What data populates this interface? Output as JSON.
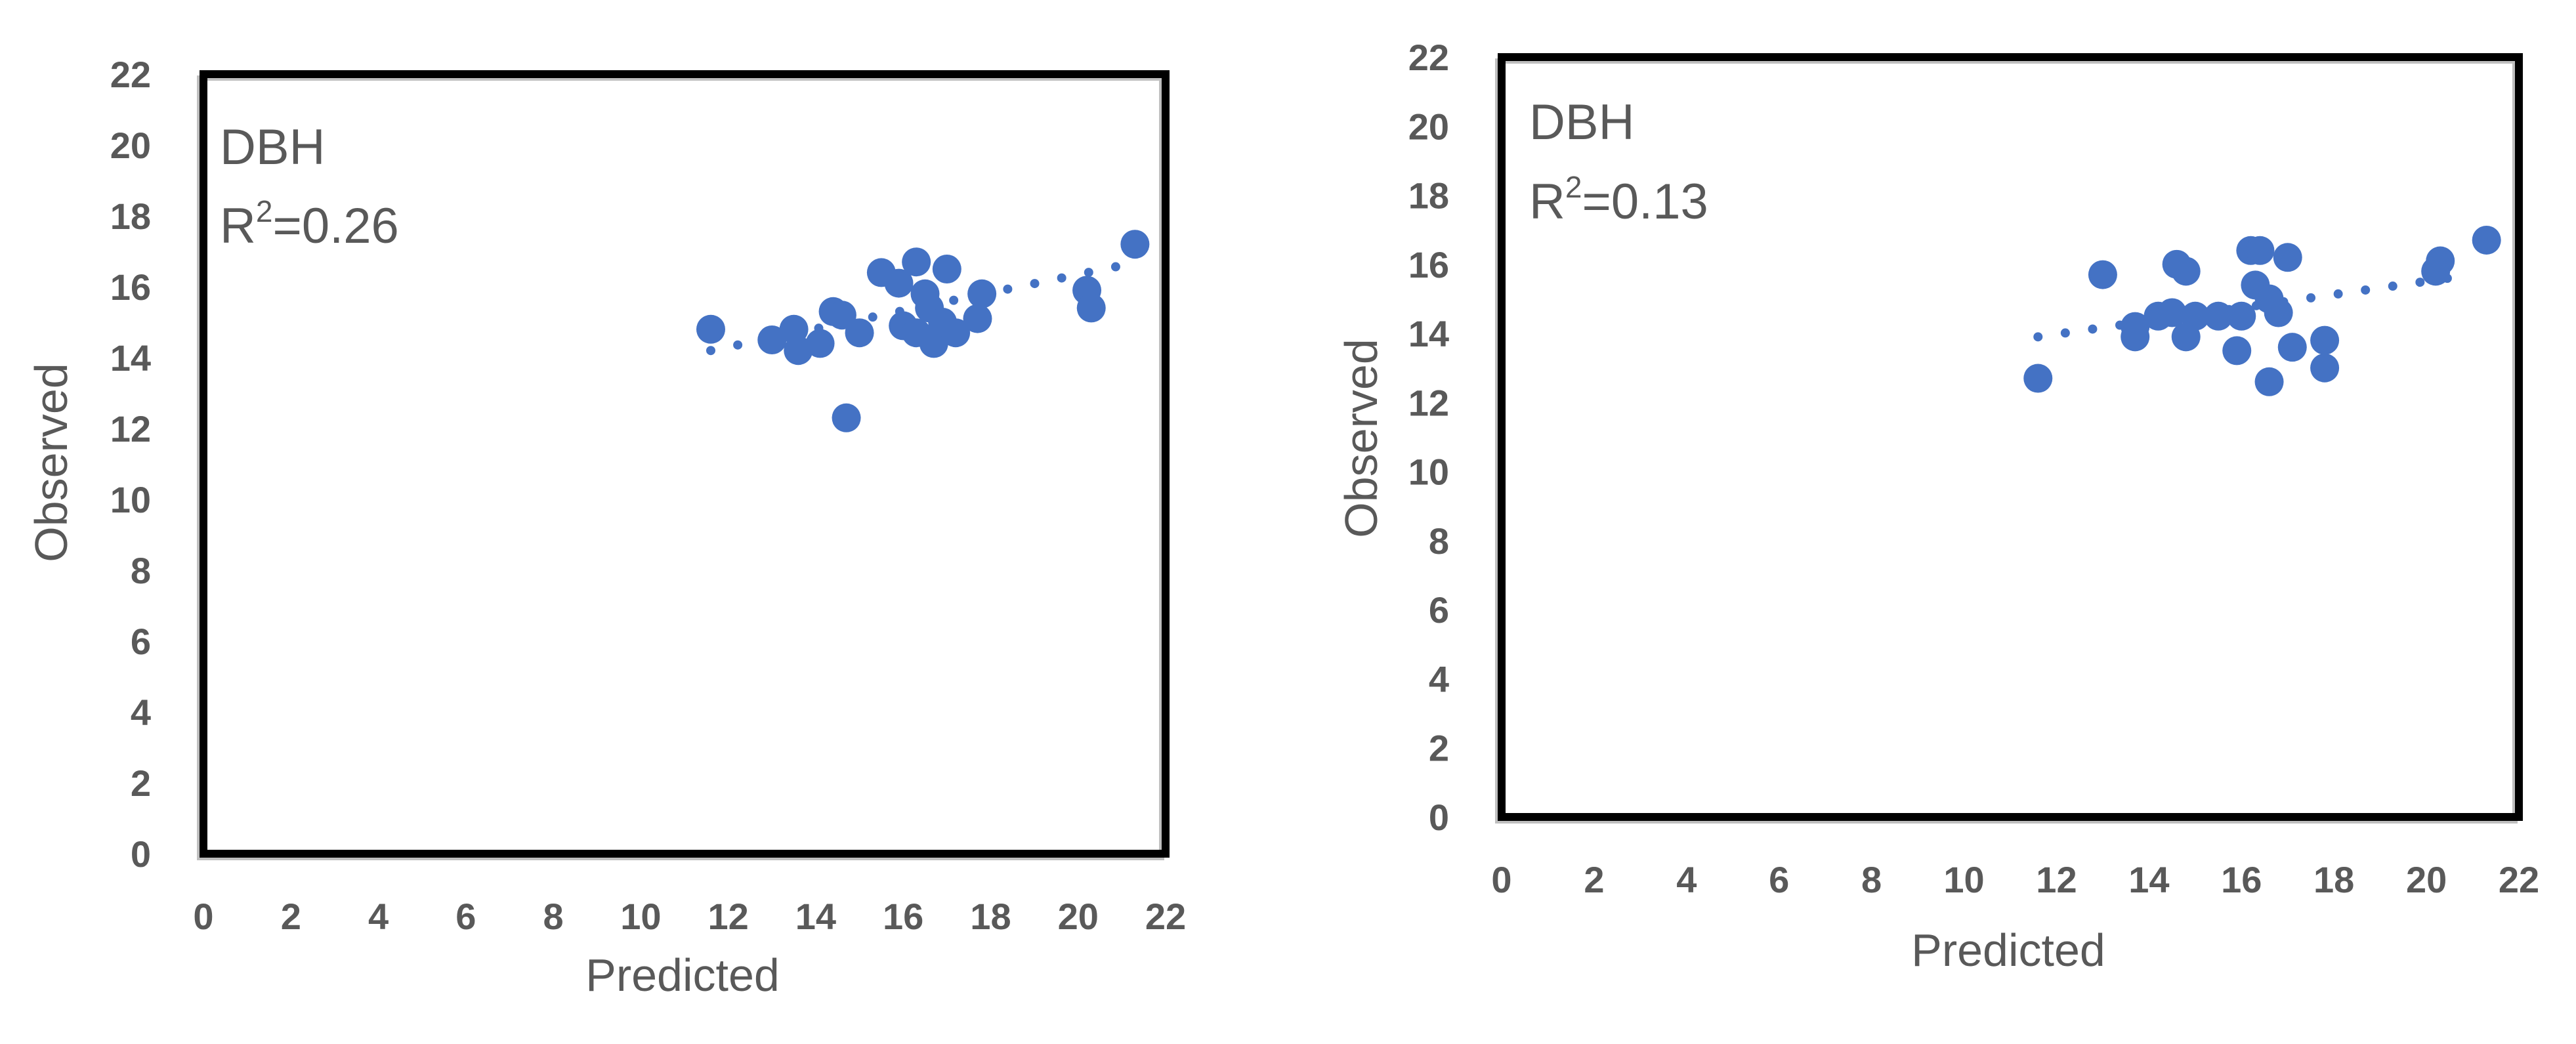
{
  "colors": {
    "marker": "#4472C4",
    "axis_text": "#595959",
    "frame": "#000000",
    "background": "#ffffff"
  },
  "chart_data": [
    {
      "type": "scatter",
      "xlabel": "Predicted",
      "ylabel": "Observed",
      "xlim": [
        0,
        22
      ],
      "ylim": [
        0,
        22
      ],
      "x_ticks": [
        "0",
        "2",
        "4",
        "6",
        "8",
        "10",
        "12",
        "14",
        "16",
        "18",
        "20",
        "22"
      ],
      "y_ticks": [
        "0",
        "2",
        "4",
        "6",
        "8",
        "10",
        "12",
        "14",
        "16",
        "18",
        "20",
        "22"
      ],
      "grid": false,
      "annotation": {
        "line1": "DBH",
        "r2_base": "R",
        "r2_exp": "2",
        "r2_value": "=0.26"
      },
      "trendline": {
        "style": "dotted",
        "x": [
          11.6,
          21.0
        ],
        "y": [
          14.2,
          16.6
        ]
      },
      "series": [
        {
          "points": [
            {
              "x": 11.6,
              "y": 14.8
            },
            {
              "x": 13.0,
              "y": 14.5
            },
            {
              "x": 13.5,
              "y": 14.8
            },
            {
              "x": 13.6,
              "y": 14.2
            },
            {
              "x": 14.1,
              "y": 14.4
            },
            {
              "x": 14.4,
              "y": 15.3
            },
            {
              "x": 14.6,
              "y": 15.2
            },
            {
              "x": 14.7,
              "y": 12.3
            },
            {
              "x": 15.0,
              "y": 14.7
            },
            {
              "x": 15.5,
              "y": 16.4
            },
            {
              "x": 15.9,
              "y": 16.1
            },
            {
              "x": 16.0,
              "y": 14.9
            },
            {
              "x": 16.3,
              "y": 16.7
            },
            {
              "x": 16.3,
              "y": 14.7
            },
            {
              "x": 16.5,
              "y": 15.8
            },
            {
              "x": 16.6,
              "y": 15.4
            },
            {
              "x": 16.7,
              "y": 14.4
            },
            {
              "x": 16.9,
              "y": 15.0
            },
            {
              "x": 17.0,
              "y": 16.5
            },
            {
              "x": 17.2,
              "y": 14.7
            },
            {
              "x": 17.7,
              "y": 15.1
            },
            {
              "x": 17.8,
              "y": 15.8
            },
            {
              "x": 20.2,
              "y": 15.9
            },
            {
              "x": 20.3,
              "y": 15.4
            },
            {
              "x": 21.3,
              "y": 17.2
            }
          ]
        }
      ]
    },
    {
      "type": "scatter",
      "xlabel": "Predicted",
      "ylabel": "Observed",
      "xlim": [
        0,
        22
      ],
      "ylim": [
        0,
        22
      ],
      "x_ticks": [
        "0",
        "2",
        "4",
        "6",
        "8",
        "10",
        "12",
        "14",
        "16",
        "18",
        "20",
        "22"
      ],
      "y_ticks": [
        "0",
        "2",
        "4",
        "6",
        "8",
        "10",
        "12",
        "14",
        "16",
        "18",
        "20",
        "22"
      ],
      "grid": false,
      "annotation": {
        "line1": "DBH",
        "r2_base": "R",
        "r2_exp": "2",
        "r2_value": "=0.13"
      },
      "trendline": {
        "style": "dotted",
        "x": [
          11.6,
          21.0
        ],
        "y": [
          13.9,
          15.7
        ]
      },
      "series": [
        {
          "points": [
            {
              "x": 11.6,
              "y": 12.7
            },
            {
              "x": 13.0,
              "y": 15.7
            },
            {
              "x": 13.7,
              "y": 13.9
            },
            {
              "x": 13.7,
              "y": 14.2
            },
            {
              "x": 14.2,
              "y": 14.5
            },
            {
              "x": 14.5,
              "y": 14.6
            },
            {
              "x": 14.6,
              "y": 16.0
            },
            {
              "x": 14.8,
              "y": 15.8
            },
            {
              "x": 14.8,
              "y": 13.9
            },
            {
              "x": 15.0,
              "y": 14.5
            },
            {
              "x": 15.5,
              "y": 14.5
            },
            {
              "x": 15.9,
              "y": 13.5
            },
            {
              "x": 16.0,
              "y": 14.5
            },
            {
              "x": 16.2,
              "y": 16.4
            },
            {
              "x": 16.3,
              "y": 15.4
            },
            {
              "x": 16.4,
              "y": 16.4
            },
            {
              "x": 16.6,
              "y": 15.0
            },
            {
              "x": 16.6,
              "y": 12.6
            },
            {
              "x": 16.8,
              "y": 14.6
            },
            {
              "x": 17.0,
              "y": 16.2
            },
            {
              "x": 17.1,
              "y": 13.6
            },
            {
              "x": 17.8,
              "y": 13.8
            },
            {
              "x": 17.8,
              "y": 13.0
            },
            {
              "x": 20.2,
              "y": 15.8
            },
            {
              "x": 20.3,
              "y": 16.1
            },
            {
              "x": 21.3,
              "y": 16.7
            }
          ]
        }
      ]
    }
  ]
}
